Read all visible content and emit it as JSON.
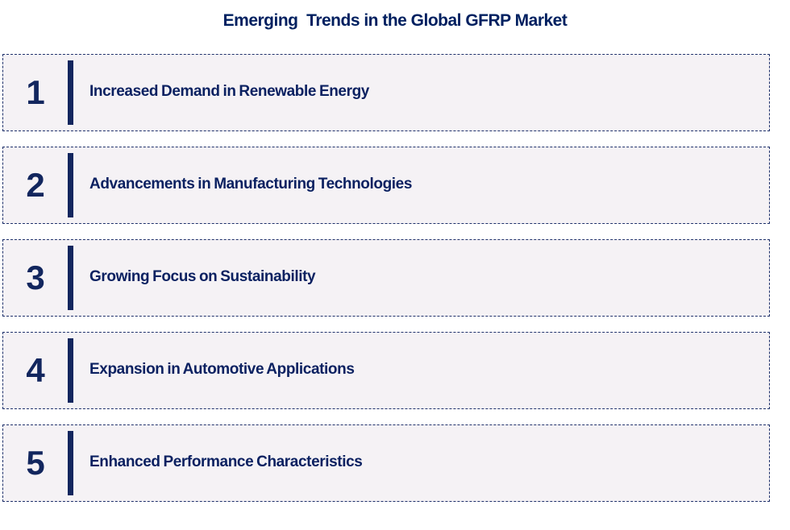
{
  "title": "Emerging  Trends in the Global GFRP Market",
  "colors": {
    "title_navy": "#002060",
    "accent_navy": "#12265e",
    "box_background": "#f5f2f5",
    "box_border": "#1f316b",
    "page_background": "#ffffff"
  },
  "trends": [
    {
      "number": "1",
      "label": "Increased Demand in Renewable Energy"
    },
    {
      "number": "2",
      "label": "Advancements in Manufacturing Technologies"
    },
    {
      "number": "3",
      "label": "Growing Focus on Sustainability"
    },
    {
      "number": "4",
      "label": "Expansion in Automotive Applications"
    },
    {
      "number": "5",
      "label": "Enhanced Performance Characteristics"
    }
  ]
}
